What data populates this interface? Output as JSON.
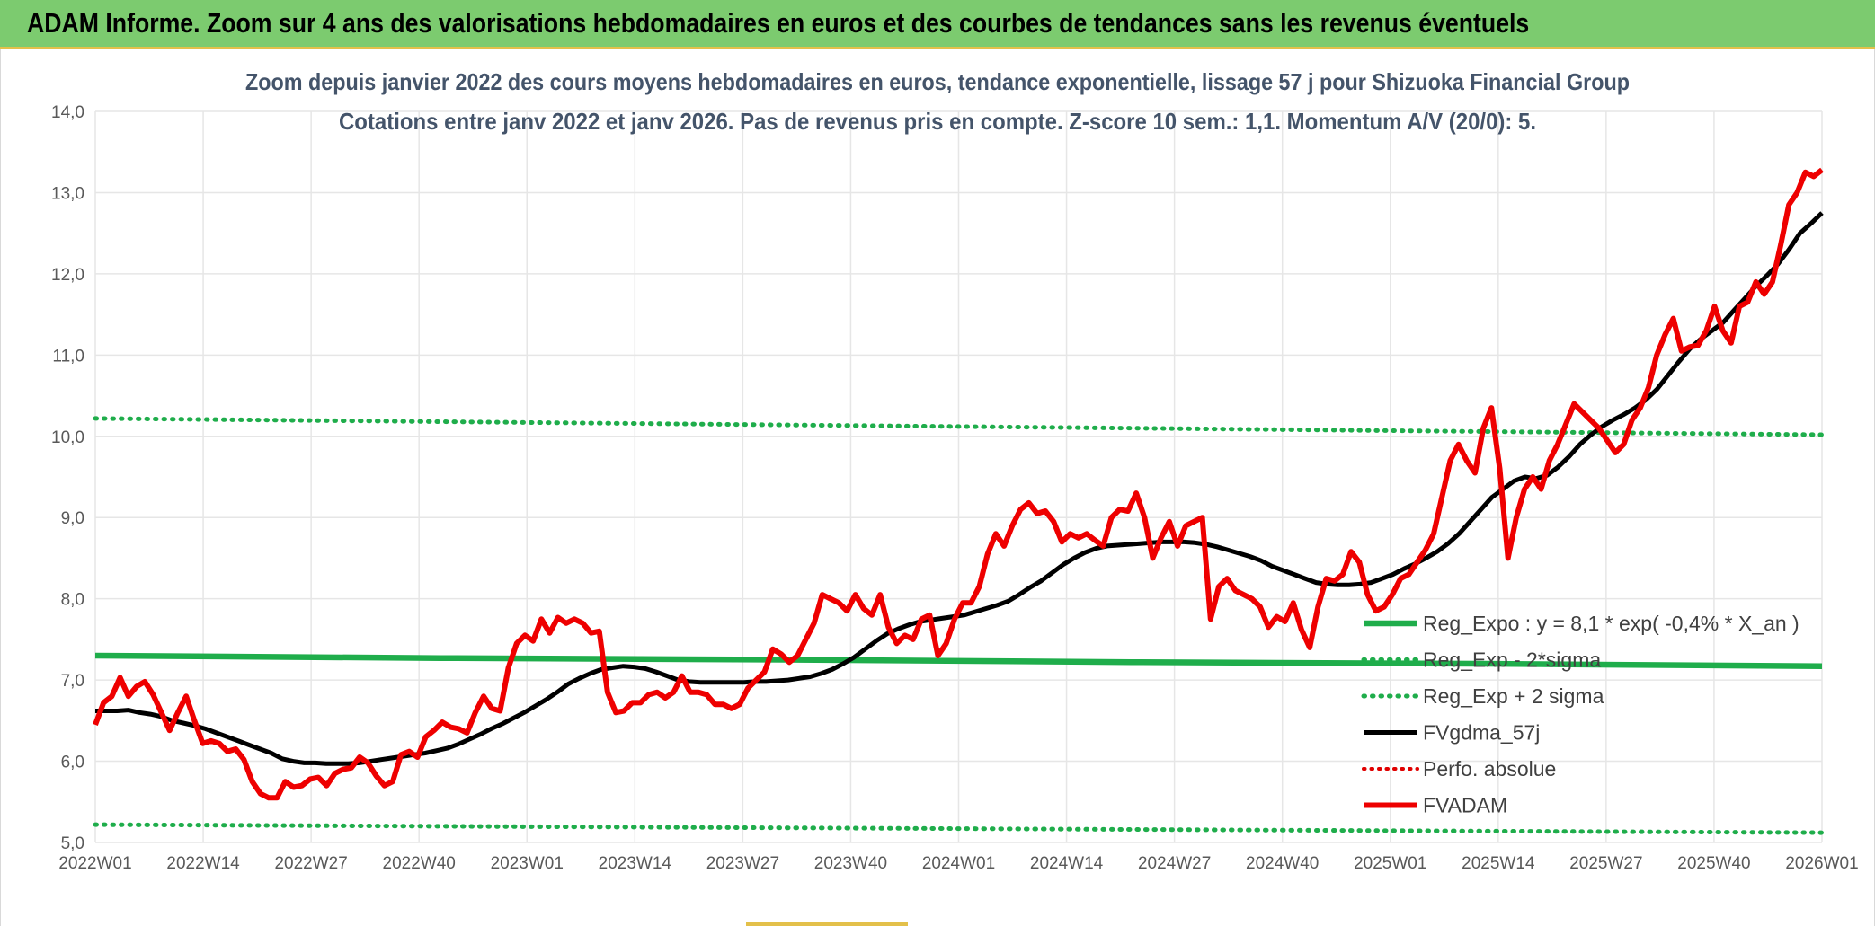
{
  "header": {
    "title": "ADAM Informe. Zoom sur 4 ans des valorisations hebdomadaires en euros et des courbes de tendances sans les revenus éventuels"
  },
  "chart_data": {
    "type": "line",
    "title_line1": "Zoom depuis janvier 2022 des cours moyens hebdomadaires en euros, tendance exponentielle, lissage 57 j pour Shizuoka Financial Group",
    "title_line2": "Cotations entre janv 2022 et janv 2026. Pas de revenus pris en compte. Z-score 10 sem.: 1,1. Momentum A/V (20/0): 5.",
    "ylim": [
      5.0,
      14.0
    ],
    "y_ticks": [
      "5,0",
      "6,0",
      "7,0",
      "8,0",
      "9,0",
      "10,0",
      "11,0",
      "12,0",
      "13,0",
      "14,0"
    ],
    "x_ticks": [
      "2022W01",
      "2022W14",
      "2022W27",
      "2022W40",
      "2023W01",
      "2023W14",
      "2023W27",
      "2023W40",
      "2024W01",
      "2024W14",
      "2024W27",
      "2024W40",
      "2025W01",
      "2025W14",
      "2025W27",
      "2025W40",
      "2026W01"
    ],
    "grid": true,
    "legend_placement": "right",
    "colors": {
      "reg_expo": "#1fad4b",
      "sigma": "#1fad4b",
      "fvgdma": "#000000",
      "perfo": "#e00000",
      "fvadam": "#ee0000",
      "grid": "#e6e6e6"
    },
    "series": [
      {
        "name": "Reg_Expo : y = 8,1 * exp( -0,4% *  X_an )",
        "style": "solid",
        "values": [
          7.3,
          7.27,
          7.25,
          7.22,
          7.2,
          7.17
        ]
      },
      {
        "name": "Reg_Exp - 2*sigma",
        "style": "dotted",
        "values": [
          5.22,
          5.2,
          5.18,
          5.16,
          5.14,
          5.12
        ]
      },
      {
        "name": "Reg_Exp + 2 sigma",
        "style": "dotted",
        "values": [
          10.22,
          10.18,
          10.14,
          10.1,
          10.06,
          10.02
        ]
      },
      {
        "name": "FVgdma_57j",
        "style": "solid",
        "values": [
          6.62,
          6.62,
          6.62,
          6.63,
          6.6,
          6.58,
          6.55,
          6.5,
          6.47,
          6.44,
          6.4,
          6.35,
          6.3,
          6.25,
          6.2,
          6.15,
          6.1,
          6.03,
          6.0,
          5.98,
          5.98,
          5.97,
          5.97,
          5.97,
          5.98,
          6.0,
          6.02,
          6.04,
          6.06,
          6.08,
          6.1,
          6.13,
          6.16,
          6.21,
          6.27,
          6.33,
          6.4,
          6.46,
          6.53,
          6.6,
          6.68,
          6.76,
          6.85,
          6.95,
          7.02,
          7.08,
          7.13,
          7.15,
          7.17,
          7.16,
          7.14,
          7.1,
          7.05,
          7.0,
          6.98,
          6.97,
          6.97,
          6.97,
          6.97,
          6.97,
          6.98,
          6.98,
          6.99,
          7.0,
          7.02,
          7.04,
          7.08,
          7.13,
          7.2,
          7.28,
          7.38,
          7.48,
          7.57,
          7.63,
          7.68,
          7.72,
          7.74,
          7.76,
          7.78,
          7.8,
          7.84,
          7.88,
          7.92,
          7.97,
          8.05,
          8.14,
          8.22,
          8.32,
          8.42,
          8.5,
          8.57,
          8.62,
          8.65,
          8.66,
          8.67,
          8.68,
          8.69,
          8.7,
          8.7,
          8.7,
          8.69,
          8.67,
          8.64,
          8.6,
          8.56,
          8.52,
          8.47,
          8.4,
          8.35,
          8.3,
          8.25,
          8.2,
          8.18,
          8.17,
          8.17,
          8.18,
          8.2,
          8.25,
          8.3,
          8.37,
          8.43,
          8.5,
          8.58,
          8.68,
          8.8,
          8.95,
          9.1,
          9.25,
          9.35,
          9.45,
          9.5,
          9.48,
          9.52,
          9.62,
          9.75,
          9.9,
          10.02,
          10.12,
          10.2,
          10.27,
          10.35,
          10.45,
          10.58,
          10.75,
          10.92,
          11.08,
          11.2,
          11.3,
          11.4,
          11.55,
          11.7,
          11.85,
          11.98,
          12.12,
          12.3,
          12.5,
          12.62,
          12.75
        ]
      },
      {
        "name": "Perfo. absolue",
        "style": "dotted",
        "values": []
      },
      {
        "name": "FVADAM",
        "style": "solid",
        "values": [
          6.45,
          6.72,
          6.8,
          7.03,
          6.8,
          6.92,
          6.98,
          6.82,
          6.6,
          6.38,
          6.6,
          6.8,
          6.5,
          6.22,
          6.25,
          6.22,
          6.12,
          6.15,
          6.02,
          5.75,
          5.6,
          5.55,
          5.55,
          5.75,
          5.68,
          5.7,
          5.78,
          5.8,
          5.7,
          5.85,
          5.9,
          5.92,
          6.05,
          5.98,
          5.82,
          5.7,
          5.75,
          6.08,
          6.12,
          6.05,
          6.3,
          6.38,
          6.48,
          6.42,
          6.4,
          6.35,
          6.6,
          6.8,
          6.65,
          6.62,
          7.15,
          7.45,
          7.55,
          7.48,
          7.75,
          7.58,
          7.77,
          7.7,
          7.75,
          7.7,
          7.58,
          7.6,
          6.85,
          6.6,
          6.62,
          6.72,
          6.72,
          6.82,
          6.85,
          6.78,
          6.85,
          7.05,
          6.85,
          6.85,
          6.82,
          6.7,
          6.7,
          6.65,
          6.7,
          6.9,
          7.0,
          7.1,
          7.38,
          7.32,
          7.22,
          7.3,
          7.5,
          7.7,
          8.05,
          8.0,
          7.95,
          7.85,
          8.05,
          7.88,
          7.8,
          8.05,
          7.65,
          7.45,
          7.55,
          7.5,
          7.75,
          7.8,
          7.3,
          7.45,
          7.75,
          7.95,
          7.95,
          8.15,
          8.55,
          8.8,
          8.65,
          8.9,
          9.1,
          9.18,
          9.05,
          9.08,
          8.95,
          8.7,
          8.8,
          8.75,
          8.8,
          8.72,
          8.65,
          9.0,
          9.1,
          9.08,
          9.3,
          9.0,
          8.5,
          8.75,
          8.95,
          8.65,
          8.9,
          8.95,
          9.0,
          7.75,
          8.15,
          8.25,
          8.1,
          8.05,
          8.0,
          7.9,
          7.65,
          7.78,
          7.72,
          7.95,
          7.62,
          7.4,
          7.9,
          8.25,
          8.22,
          8.3,
          8.58,
          8.45,
          8.05,
          7.85,
          7.9,
          8.05,
          8.25,
          8.3,
          8.45,
          8.6,
          8.8,
          9.25,
          9.7,
          9.9,
          9.7,
          9.55,
          10.1,
          10.35,
          9.6,
          8.5,
          9.0,
          9.35,
          9.5,
          9.35,
          9.7,
          9.9,
          10.15,
          10.4,
          10.3,
          10.2,
          10.1,
          9.95,
          9.8,
          9.9,
          10.2,
          10.35,
          10.6,
          11.0,
          11.25,
          11.45,
          11.05,
          11.1,
          11.12,
          11.3,
          11.6,
          11.3,
          11.15,
          11.6,
          11.65,
          11.9,
          11.75,
          11.9,
          12.35,
          12.85,
          13.0,
          13.25,
          13.2,
          13.28
        ]
      }
    ]
  }
}
